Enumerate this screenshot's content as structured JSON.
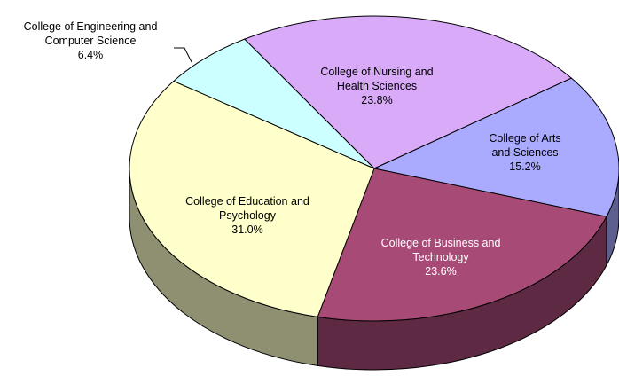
{
  "chart_data": {
    "type": "pie",
    "categories": [
      "College of Nursing and Health Sciences",
      "College of Arts and Sciences",
      "College of Business and Technology",
      "College of Education and Psychology",
      "College of Engineering and Computer Science"
    ],
    "values": [
      23.8,
      15.2,
      23.6,
      31.0,
      6.4
    ],
    "value_labels": [
      "23.8%",
      "15.2%",
      "23.6%",
      "31.0%",
      "6.4%"
    ],
    "colors": [
      "#d8aaf8",
      "#aaaaff",
      "#a84a76",
      "#ffffcc",
      "#ccffff"
    ]
  }
}
